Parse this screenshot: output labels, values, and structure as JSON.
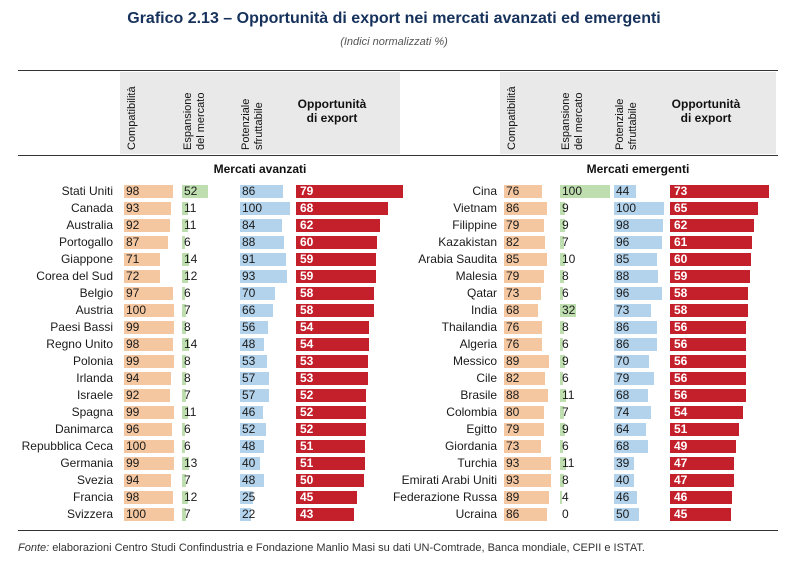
{
  "title": "Grafico 2.13 – Opportunità di export nei mercati avanzati ed emergenti",
  "subtitle": "(Indici normalizzati %)",
  "source_label": "Fonte:",
  "source_text": " elaborazioni Centro Studi Confindustria e Fondazione Manlio Masi su dati UN-Comtrade, Banca mondiale, CEPII e ISTAT.",
  "colors": {
    "compatibilita": "#f4c7a1",
    "espansione": "#bfdeb0",
    "potenziale": "#b3d3ec",
    "opportunita": "#c4202c",
    "title": "#16325c"
  },
  "chart_data": [
    {
      "type": "table",
      "group": "Mercati avanzati",
      "columns": [
        "Compatibilità",
        "Espansione del mercato",
        "Potenziale sfruttabile",
        "Opportunità di export"
      ],
      "rows": [
        {
          "country": "Stati Uniti",
          "compatibilita": 98,
          "espansione": 52,
          "potenziale": 86,
          "opportunita": 79
        },
        {
          "country": "Canada",
          "compatibilita": 93,
          "espansione": 11,
          "potenziale": 100,
          "opportunita": 68
        },
        {
          "country": "Australia",
          "compatibilita": 92,
          "espansione": 11,
          "potenziale": 84,
          "opportunita": 62
        },
        {
          "country": "Portogallo",
          "compatibilita": 87,
          "espansione": 6,
          "potenziale": 88,
          "opportunita": 60
        },
        {
          "country": "Giappone",
          "compatibilita": 71,
          "espansione": 14,
          "potenziale": 91,
          "opportunita": 59
        },
        {
          "country": "Corea del Sud",
          "compatibilita": 72,
          "espansione": 12,
          "potenziale": 93,
          "opportunita": 59
        },
        {
          "country": "Belgio",
          "compatibilita": 97,
          "espansione": 6,
          "potenziale": 70,
          "opportunita": 58
        },
        {
          "country": "Austria",
          "compatibilita": 100,
          "espansione": 7,
          "potenziale": 66,
          "opportunita": 58
        },
        {
          "country": "Paesi Bassi",
          "compatibilita": 99,
          "espansione": 8,
          "potenziale": 56,
          "opportunita": 54
        },
        {
          "country": "Regno Unito",
          "compatibilita": 98,
          "espansione": 14,
          "potenziale": 48,
          "opportunita": 54
        },
        {
          "country": "Polonia",
          "compatibilita": 99,
          "espansione": 8,
          "potenziale": 53,
          "opportunita": 53
        },
        {
          "country": "Irlanda",
          "compatibilita": 94,
          "espansione": 8,
          "potenziale": 57,
          "opportunita": 53
        },
        {
          "country": "Israele",
          "compatibilita": 92,
          "espansione": 7,
          "potenziale": 57,
          "opportunita": 52
        },
        {
          "country": "Spagna",
          "compatibilita": 99,
          "espansione": 11,
          "potenziale": 46,
          "opportunita": 52
        },
        {
          "country": "Danimarca",
          "compatibilita": 96,
          "espansione": 6,
          "potenziale": 52,
          "opportunita": 52
        },
        {
          "country": "Repubblica Ceca",
          "compatibilita": 100,
          "espansione": 6,
          "potenziale": 48,
          "opportunita": 51
        },
        {
          "country": "Germania",
          "compatibilita": 99,
          "espansione": 13,
          "potenziale": 40,
          "opportunita": 51
        },
        {
          "country": "Svezia",
          "compatibilita": 94,
          "espansione": 7,
          "potenziale": 48,
          "opportunita": 50
        },
        {
          "country": "Francia",
          "compatibilita": 98,
          "espansione": 12,
          "potenziale": 25,
          "opportunita": 45
        },
        {
          "country": "Svizzera",
          "compatibilita": 100,
          "espansione": 7,
          "potenziale": 22,
          "opportunita": 43
        }
      ]
    },
    {
      "type": "table",
      "group": "Mercati emergenti",
      "columns": [
        "Compatibilità",
        "Espansione del mercato",
        "Potenziale sfruttabile",
        "Opportunità di export"
      ],
      "rows": [
        {
          "country": "Cina",
          "compatibilita": 76,
          "espansione": 100,
          "potenziale": 44,
          "opportunita": 73
        },
        {
          "country": "Vietnam",
          "compatibilita": 86,
          "espansione": 9,
          "potenziale": 100,
          "opportunita": 65
        },
        {
          "country": "Filippine",
          "compatibilita": 79,
          "espansione": 9,
          "potenziale": 98,
          "opportunita": 62
        },
        {
          "country": "Kazakistan",
          "compatibilita": 82,
          "espansione": 7,
          "potenziale": 96,
          "opportunita": 61
        },
        {
          "country": "Arabia Saudita",
          "compatibilita": 85,
          "espansione": 10,
          "potenziale": 85,
          "opportunita": 60
        },
        {
          "country": "Malesia",
          "compatibilita": 79,
          "espansione": 8,
          "potenziale": 88,
          "opportunita": 59
        },
        {
          "country": "Qatar",
          "compatibilita": 73,
          "espansione": 6,
          "potenziale": 96,
          "opportunita": 58
        },
        {
          "country": "India",
          "compatibilita": 68,
          "espansione": 32,
          "potenziale": 73,
          "opportunita": 58
        },
        {
          "country": "Thailandia",
          "compatibilita": 76,
          "espansione": 8,
          "potenziale": 86,
          "opportunita": 56
        },
        {
          "country": "Algeria",
          "compatibilita": 76,
          "espansione": 6,
          "potenziale": 86,
          "opportunita": 56
        },
        {
          "country": "Messico",
          "compatibilita": 89,
          "espansione": 9,
          "potenziale": 70,
          "opportunita": 56
        },
        {
          "country": "Cile",
          "compatibilita": 82,
          "espansione": 6,
          "potenziale": 79,
          "opportunita": 56
        },
        {
          "country": "Brasile",
          "compatibilita": 88,
          "espansione": 11,
          "potenziale": 68,
          "opportunita": 56
        },
        {
          "country": "Colombia",
          "compatibilita": 80,
          "espansione": 7,
          "potenziale": 74,
          "opportunita": 54
        },
        {
          "country": "Egitto",
          "compatibilita": 79,
          "espansione": 9,
          "potenziale": 64,
          "opportunita": 51
        },
        {
          "country": "Giordania",
          "compatibilita": 73,
          "espansione": 6,
          "potenziale": 68,
          "opportunita": 49
        },
        {
          "country": "Turchia",
          "compatibilita": 93,
          "espansione": 11,
          "potenziale": 39,
          "opportunita": 47
        },
        {
          "country": "Emirati Arabi Uniti",
          "compatibilita": 93,
          "espansione": 8,
          "potenziale": 40,
          "opportunita": 47
        },
        {
          "country": "Federazione Russa",
          "compatibilita": 89,
          "espansione": 4,
          "potenziale": 46,
          "opportunita": 46
        },
        {
          "country": "Ucraina",
          "compatibilita": 86,
          "espansione": 0,
          "potenziale": 50,
          "opportunita": 45
        }
      ]
    }
  ],
  "headers": {
    "compatibilita": "Compatibilità",
    "espansione_1": "Espansione",
    "espansione_2": "del mercato",
    "potenziale_1": "Potenziale",
    "potenziale_2": "sfruttabile",
    "opportunita_1": "Opportunità",
    "opportunita_2": "di export"
  }
}
